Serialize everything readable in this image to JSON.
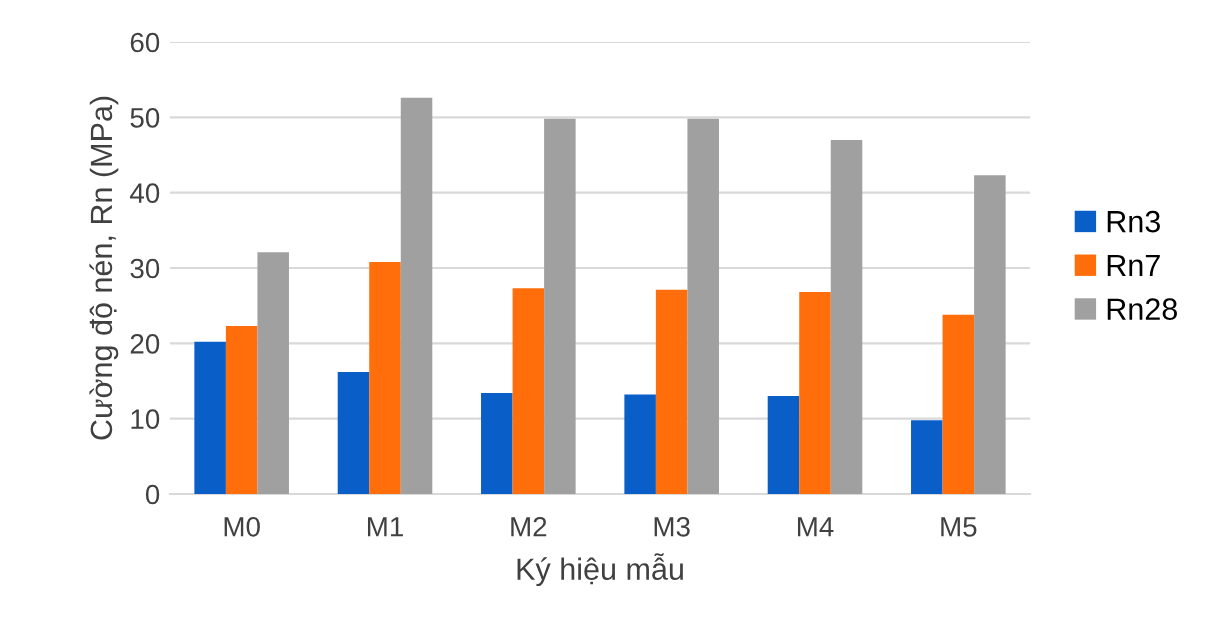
{
  "chart_data": {
    "type": "bar",
    "xlabel": "Ký hiệu mẫu",
    "ylabel": "Cường độ nén, Rn (MPa)",
    "categories": [
      "M0",
      "M1",
      "M2",
      "M3",
      "M4",
      "M5"
    ],
    "series": [
      {
        "name": "Rn3",
        "color": "#0a5ec8",
        "values": [
          20.2,
          16.2,
          13.4,
          13.2,
          13.0,
          9.8
        ]
      },
      {
        "name": "Rn7",
        "color": "#ff6e0a",
        "values": [
          22.3,
          30.8,
          27.3,
          27.1,
          26.8,
          23.8
        ]
      },
      {
        "name": "Rn28",
        "color": "#a0a0a0",
        "values": [
          32.1,
          52.6,
          49.8,
          49.8,
          47.0,
          42.3
        ]
      }
    ],
    "ylim": [
      0,
      60
    ],
    "yticks": [
      0,
      10,
      20,
      30,
      40,
      50,
      60
    ],
    "grid": "y",
    "legend": "right"
  }
}
